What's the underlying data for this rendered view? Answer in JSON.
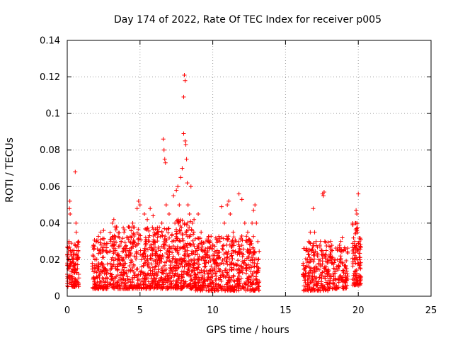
{
  "chart_data": {
    "type": "scatter",
    "title": "Day 174 of 2022, Rate Of TEC Index for receiver p005",
    "xlabel": "GPS time / hours",
    "ylabel": "ROTI / TECUs",
    "xlim": [
      0,
      25
    ],
    "ylim": [
      0,
      0.14
    ],
    "xticks": [
      0,
      5,
      10,
      15,
      20,
      25
    ],
    "xtick_labels": [
      "0",
      "5",
      "10",
      "15",
      "20",
      "25"
    ],
    "yticks": [
      0,
      0.02,
      0.04,
      0.06,
      0.08,
      0.1,
      0.12,
      0.14
    ],
    "ytick_labels": [
      "0",
      "0.02",
      "0.04",
      "0.06",
      "0.08",
      "0.1",
      "0.12",
      "0.14"
    ],
    "grid": true,
    "marker": "plus",
    "marker_color": "#ff0000",
    "series": [
      {
        "points": [
          [
            0.0,
            0.012
          ],
          [
            0.05,
            0.015
          ],
          [
            0.1,
            0.02
          ],
          [
            0.12,
            0.03
          ],
          [
            0.15,
            0.048
          ],
          [
            0.18,
            0.052
          ],
          [
            0.2,
            0.045
          ],
          [
            0.22,
            0.025
          ],
          [
            0.25,
            0.018
          ],
          [
            0.3,
            0.022
          ],
          [
            0.35,
            0.01
          ],
          [
            0.4,
            0.015
          ],
          [
            0.45,
            0.008
          ],
          [
            0.55,
            0.068
          ],
          [
            0.6,
            0.04
          ],
          [
            0.62,
            0.035
          ],
          [
            0.65,
            0.02
          ],
          [
            0.7,
            0.015
          ],
          [
            0.75,
            0.025
          ],
          [
            0.8,
            0.01
          ],
          [
            1.8,
            0.01
          ],
          [
            1.9,
            0.02
          ],
          [
            2.0,
            0.03
          ],
          [
            2.1,
            0.015
          ],
          [
            2.2,
            0.025
          ],
          [
            2.3,
            0.035
          ],
          [
            2.4,
            0.018
          ],
          [
            2.5,
            0.036
          ],
          [
            2.6,
            0.028
          ],
          [
            2.7,
            0.012
          ],
          [
            3.0,
            0.03
          ],
          [
            3.1,
            0.04
          ],
          [
            3.2,
            0.042
          ],
          [
            3.3,
            0.025
          ],
          [
            3.5,
            0.02
          ],
          [
            3.7,
            0.03
          ],
          [
            3.9,
            0.035
          ],
          [
            4.0,
            0.018
          ],
          [
            4.2,
            0.038
          ],
          [
            4.4,
            0.032
          ],
          [
            4.5,
            0.04
          ],
          [
            4.6,
            0.022
          ],
          [
            4.8,
            0.048
          ],
          [
            4.9,
            0.052
          ],
          [
            5.0,
            0.05
          ],
          [
            5.1,
            0.02
          ],
          [
            5.3,
            0.045
          ],
          [
            5.5,
            0.042
          ],
          [
            5.7,
            0.048
          ],
          [
            5.9,
            0.044
          ],
          [
            6.0,
            0.03
          ],
          [
            6.2,
            0.035
          ],
          [
            6.4,
            0.025
          ],
          [
            6.5,
            0.04
          ],
          [
            6.6,
            0.086
          ],
          [
            6.65,
            0.08
          ],
          [
            6.7,
            0.075
          ],
          [
            6.75,
            0.073
          ],
          [
            6.8,
            0.05
          ],
          [
            7.0,
            0.045
          ],
          [
            7.2,
            0.03
          ],
          [
            7.3,
            0.055
          ],
          [
            7.4,
            0.04
          ],
          [
            7.5,
            0.058
          ],
          [
            7.6,
            0.06
          ],
          [
            7.7,
            0.05
          ],
          [
            7.8,
            0.065
          ],
          [
            7.9,
            0.07
          ],
          [
            8.0,
            0.089
          ],
          [
            8.05,
            0.121
          ],
          [
            8.1,
            0.118
          ],
          [
            8.0,
            0.109
          ],
          [
            8.1,
            0.085
          ],
          [
            8.15,
            0.083
          ],
          [
            8.2,
            0.075
          ],
          [
            8.25,
            0.062
          ],
          [
            8.3,
            0.05
          ],
          [
            8.4,
            0.045
          ],
          [
            8.5,
            0.06
          ],
          [
            8.6,
            0.04
          ],
          [
            8.7,
            0.035
          ],
          [
            8.9,
            0.025
          ],
          [
            9.0,
            0.045
          ],
          [
            9.2,
            0.035
          ],
          [
            9.4,
            0.025
          ],
          [
            9.6,
            0.03
          ],
          [
            9.8,
            0.022
          ],
          [
            10.0,
            0.028
          ],
          [
            10.3,
            0.025
          ],
          [
            10.5,
            0.03
          ],
          [
            10.6,
            0.049
          ],
          [
            10.8,
            0.04
          ],
          [
            11.0,
            0.05
          ],
          [
            11.1,
            0.052
          ],
          [
            11.2,
            0.045
          ],
          [
            11.4,
            0.035
          ],
          [
            11.6,
            0.03
          ],
          [
            11.8,
            0.056
          ],
          [
            12.0,
            0.053
          ],
          [
            12.2,
            0.04
          ],
          [
            12.4,
            0.035
          ],
          [
            12.6,
            0.03
          ],
          [
            12.7,
            0.04
          ],
          [
            12.8,
            0.047
          ],
          [
            12.9,
            0.05
          ],
          [
            13.0,
            0.04
          ],
          [
            13.1,
            0.02
          ],
          [
            16.2,
            0.012
          ],
          [
            16.3,
            0.015
          ],
          [
            16.4,
            0.025
          ],
          [
            16.5,
            0.02
          ],
          [
            16.6,
            0.03
          ],
          [
            16.7,
            0.035
          ],
          [
            16.8,
            0.025
          ],
          [
            16.9,
            0.048
          ],
          [
            17.0,
            0.035
          ],
          [
            17.1,
            0.03
          ],
          [
            17.2,
            0.022
          ],
          [
            17.3,
            0.02
          ],
          [
            17.4,
            0.03
          ],
          [
            17.5,
            0.025
          ],
          [
            17.55,
            0.056
          ],
          [
            17.6,
            0.055
          ],
          [
            17.65,
            0.057
          ],
          [
            17.7,
            0.03
          ],
          [
            17.8,
            0.025
          ],
          [
            17.9,
            0.02
          ],
          [
            18.0,
            0.022
          ],
          [
            18.1,
            0.03
          ],
          [
            18.2,
            0.025
          ],
          [
            18.4,
            0.02
          ],
          [
            18.6,
            0.015
          ],
          [
            18.8,
            0.03
          ],
          [
            18.9,
            0.032
          ],
          [
            19.0,
            0.025
          ],
          [
            19.1,
            0.015
          ],
          [
            19.2,
            0.01
          ],
          [
            19.7,
            0.02
          ],
          [
            19.75,
            0.03
          ],
          [
            19.8,
            0.04
          ],
          [
            19.85,
            0.047
          ],
          [
            19.9,
            0.045
          ],
          [
            19.95,
            0.035
          ],
          [
            20.0,
            0.056
          ],
          [
            20.05,
            0.03
          ],
          [
            20.1,
            0.02
          ],
          [
            20.15,
            0.015
          ]
        ]
      }
    ],
    "clusters": [
      {
        "x": [
          0.0,
          0.8
        ],
        "y": [
          0.005,
          0.03
        ],
        "n": 120
      },
      {
        "x": [
          1.7,
          2.8
        ],
        "y": [
          0.004,
          0.033
        ],
        "n": 160
      },
      {
        "x": [
          2.9,
          7.5
        ],
        "y": [
          0.004,
          0.038
        ],
        "n": 650
      },
      {
        "x": [
          7.4,
          8.8
        ],
        "y": [
          0.004,
          0.042
        ],
        "n": 220
      },
      {
        "x": [
          8.7,
          13.2
        ],
        "y": [
          0.003,
          0.033
        ],
        "n": 600
      },
      {
        "x": [
          16.2,
          18.0
        ],
        "y": [
          0.003,
          0.03
        ],
        "n": 220
      },
      {
        "x": [
          18.0,
          19.3
        ],
        "y": [
          0.004,
          0.028
        ],
        "n": 140
      },
      {
        "x": [
          19.6,
          20.2
        ],
        "y": [
          0.006,
          0.04
        ],
        "n": 110
      }
    ]
  }
}
